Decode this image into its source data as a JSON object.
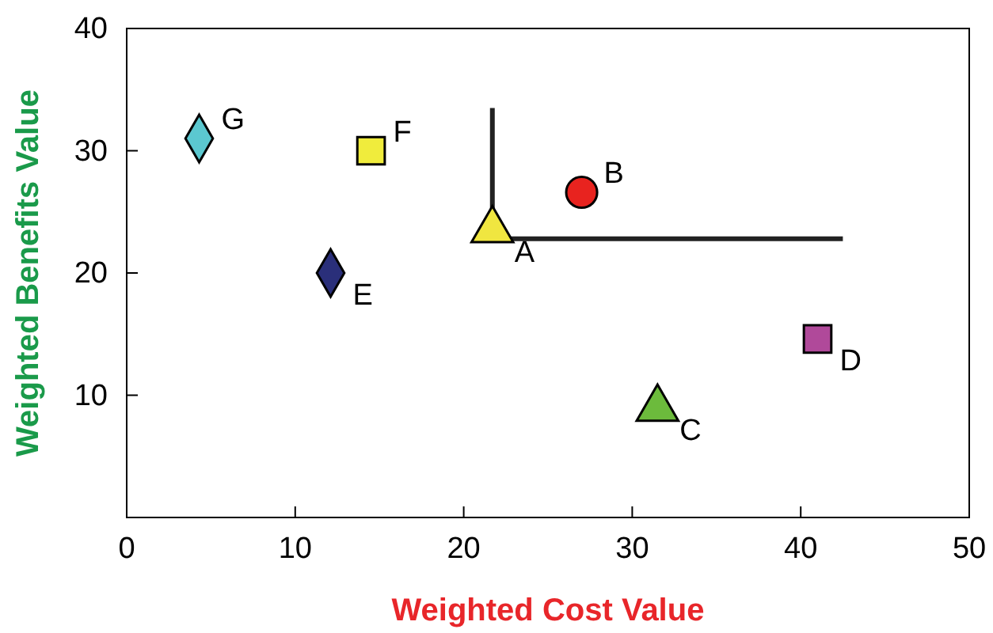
{
  "chart_data": {
    "type": "scatter",
    "xlabel": "Weighted Cost Value",
    "ylabel": "Weighted Benefits Value",
    "xlim": [
      0,
      50
    ],
    "ylim": [
      0,
      40
    ],
    "xticks": [
      0,
      10,
      20,
      30,
      40,
      50
    ],
    "yticks": [
      {
        "value": 0,
        "label": null
      },
      10,
      20,
      30,
      40
    ],
    "grid": false,
    "series": [
      {
        "name": "G",
        "color": "#5bc8d0",
        "marker": "diamond",
        "x": [
          4.3
        ],
        "values": [
          31
        ]
      },
      {
        "name": "F",
        "color": "#f0ec3c",
        "marker": "square",
        "x": [
          14.5
        ],
        "values": [
          30
        ]
      },
      {
        "name": "B",
        "color": "#e8231f",
        "marker": "circle",
        "x": [
          27
        ],
        "values": [
          26.6
        ]
      },
      {
        "name": "A",
        "color": "#f0e640",
        "marker": "triangle",
        "x": [
          21.7
        ],
        "values": [
          23.5
        ]
      },
      {
        "name": "E",
        "color": "#2a2f7a",
        "marker": "diamond",
        "x": [
          12.1
        ],
        "values": [
          20
        ]
      },
      {
        "name": "D",
        "color": "#b0499a",
        "marker": "square",
        "x": [
          41
        ],
        "values": [
          14.6
        ]
      },
      {
        "name": "C",
        "color": "#6cbb3c",
        "marker": "triangle",
        "x": [
          31.5
        ],
        "values": [
          8.9
        ]
      },
      {
        "type": "line",
        "color": "#222222",
        "line_style": "solid",
        "x": [
          21.7,
          21.7,
          42.5
        ],
        "values": [
          33.5,
          22.8,
          22.8
        ]
      }
    ]
  }
}
